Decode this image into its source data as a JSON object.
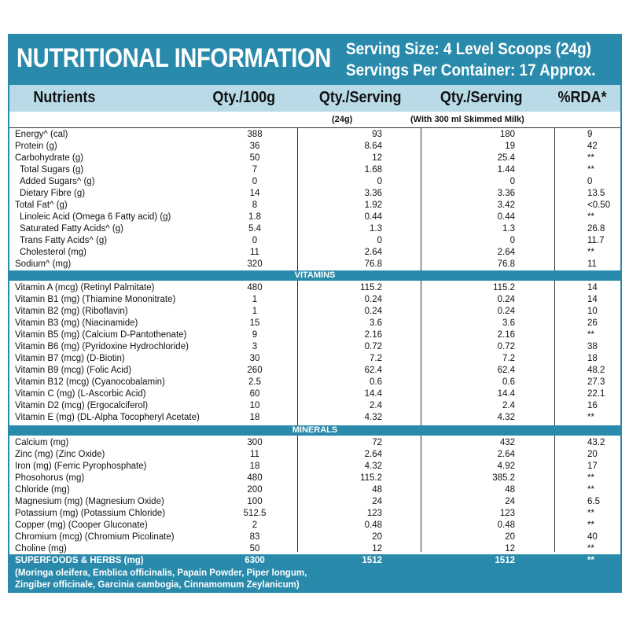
{
  "header": {
    "title": "NUTRITIONAL INFORMATION",
    "serving_size": "Serving Size: 4 Level Scoops (24g)",
    "servings_per_container": "Servings Per Container: 17 Approx."
  },
  "columns": {
    "nutrients": "Nutrients",
    "qty_100g": "Qty./100g",
    "qty_serving": "Qty./Serving",
    "qty_serving_milk": "Qty./Serving",
    "rda": "%RDA*",
    "sub_serving": "(24g)",
    "sub_milk": "(With 300 ml Skimmed Milk)"
  },
  "sections": {
    "vitamins": "VITAMINS",
    "minerals": "MINERALS"
  },
  "rows": [
    {
      "name": "Energy^ (cal)",
      "per100": "388",
      "serving": "93",
      "milk": "180",
      "rda": "9"
    },
    {
      "name": "Protein (g)",
      "per100": "36",
      "serving": "8.64",
      "milk": "19",
      "rda": "42"
    },
    {
      "name": "Carbohydrate (g)",
      "per100": "50",
      "serving": "12",
      "milk": "25.4",
      "rda": "**"
    },
    {
      "name": "Total Sugars (g)",
      "per100": "7",
      "serving": "1.68",
      "milk": "1.44",
      "rda": "**"
    },
    {
      "name": "Added Sugars^ (g)",
      "per100": "0",
      "serving": "0",
      "milk": "0",
      "rda": "0"
    },
    {
      "name": "Dietary Fibre (g)",
      "per100": "14",
      "serving": "3.36",
      "milk": "3.36",
      "rda": "13.5"
    },
    {
      "name": "Total Fat^ (g)",
      "per100": "8",
      "serving": "1.92",
      "milk": "3.42",
      "rda": "<0.50"
    },
    {
      "name": "Linoleic Acid (Omega 6 Fatty acid) (g)",
      "per100": "1.8",
      "serving": "0.44",
      "milk": "0.44",
      "rda": "**"
    },
    {
      "name": "Saturated Fatty Acids^ (g)",
      "per100": "5.4",
      "serving": "1.3",
      "milk": "1.3",
      "rda": "26.8"
    },
    {
      "name": "Trans Fatty Acids^ (g)",
      "per100": "0",
      "serving": "0",
      "milk": "0",
      "rda": "11.7"
    },
    {
      "name": "Cholesterol (mg)",
      "per100": "11",
      "serving": "2.64",
      "milk": "2.64",
      "rda": "**"
    },
    {
      "name": "Sodium^ (mg)",
      "per100": "320",
      "serving": "76.8",
      "milk": "76.8",
      "rda": "11"
    }
  ],
  "vitamins": [
    {
      "name": "Vitamin A (mcg) (Retinyl Palmitate)",
      "per100": "480",
      "serving": "115.2",
      "milk": "115.2",
      "rda": "14"
    },
    {
      "name": "Vitamin B1 (mg) (Thiamine Mononitrate)",
      "per100": "1",
      "serving": "0.24",
      "milk": "0.24",
      "rda": "14"
    },
    {
      "name": "Vitamin B2 (mg) (Riboflavin)",
      "per100": "1",
      "serving": "0.24",
      "milk": "0.24",
      "rda": "10"
    },
    {
      "name": "Vitamin B3 (mg) (Niacinamide)",
      "per100": "15",
      "serving": "3.6",
      "milk": "3.6",
      "rda": "26"
    },
    {
      "name": "Vitamin B5 (mg) (Calcium D-Pantothenate)",
      "per100": "9",
      "serving": "2.16",
      "milk": "2.16",
      "rda": "**"
    },
    {
      "name": "Vitamin B6 (mg) (Pyridoxine Hydrochloride)",
      "per100": "3",
      "serving": "0.72",
      "milk": "0.72",
      "rda": "38"
    },
    {
      "name": "Vitamin B7 (mcg) (D-Biotin)",
      "per100": "30",
      "serving": "7.2",
      "milk": "7.2",
      "rda": "18"
    },
    {
      "name": "Vitamin B9 (mcg) (Folic Acid)",
      "per100": "260",
      "serving": "62.4",
      "milk": "62.4",
      "rda": "48.2"
    },
    {
      "name": "Vitamin B12 (mcg) (Cyanocobalamin)",
      "per100": "2.5",
      "serving": "0.6",
      "milk": "0.6",
      "rda": "27.3"
    },
    {
      "name": "Vitamin C (mg) (L-Ascorbic Acid)",
      "per100": "60",
      "serving": "14.4",
      "milk": "14.4",
      "rda": "22.1"
    },
    {
      "name": "Vitamin D2 (mcg) (Ergocalciferol)",
      "per100": "10",
      "serving": "2.4",
      "milk": "2.4",
      "rda": "16"
    },
    {
      "name": "Vitamin E (mg) (DL-Alpha Tocopheryl Acetate)",
      "per100": "18",
      "serving": "4.32",
      "milk": "4.32",
      "rda": "**"
    }
  ],
  "minerals": [
    {
      "name": "Calcium (mg)",
      "per100": "300",
      "serving": "72",
      "milk": "432",
      "rda": "43.2"
    },
    {
      "name": "Zinc (mg) (Zinc Oxide)",
      "per100": "11",
      "serving": "2.64",
      "milk": "2.64",
      "rda": "20"
    },
    {
      "name": "Iron (mg) (Ferric Pyrophosphate)",
      "per100": "18",
      "serving": "4.32",
      "milk": "4.92",
      "rda": "17"
    },
    {
      "name": "Phosohorus (mg)",
      "per100": "480",
      "serving": "115.2",
      "milk": "385.2",
      "rda": "**"
    },
    {
      "name": "Chloride (mg)",
      "per100": "200",
      "serving": "48",
      "milk": "48",
      "rda": "**"
    },
    {
      "name": "Magnesium (mg) (Magnesium Oxide)",
      "per100": "100",
      "serving": "24",
      "milk": "24",
      "rda": "6.5"
    },
    {
      "name": "Potassium (mg) (Potassium Chloride)",
      "per100": "512.5",
      "serving": "123",
      "milk": "123",
      "rda": "**"
    },
    {
      "name": "Copper (mg) (Cooper Gluconate)",
      "per100": "2",
      "serving": "0.48",
      "milk": "0.48",
      "rda": "**"
    },
    {
      "name": "Chromium (mcg) (Chromium Picolinate)",
      "per100": "83",
      "serving": "20",
      "milk": "20",
      "rda": "40"
    },
    {
      "name": "Choline (mg)",
      "per100": "50",
      "serving": "12",
      "milk": "12",
      "rda": "**"
    }
  ],
  "superfoods": {
    "name": "SUPERFOODS & HERBS (mg)",
    "per100": "6300",
    "serving": "1512",
    "milk": "1512",
    "rda": "**",
    "line1": "(Moringa oleifera, Emblica officinalis, Papain Powder, Piper longum,",
    "line2": "Zingiber officinale, Garcinia cambogia, Cinnamomum Zeylanicum)"
  },
  "colors": {
    "accent": "#2a8aab",
    "header_band": "#b9dbe8"
  }
}
